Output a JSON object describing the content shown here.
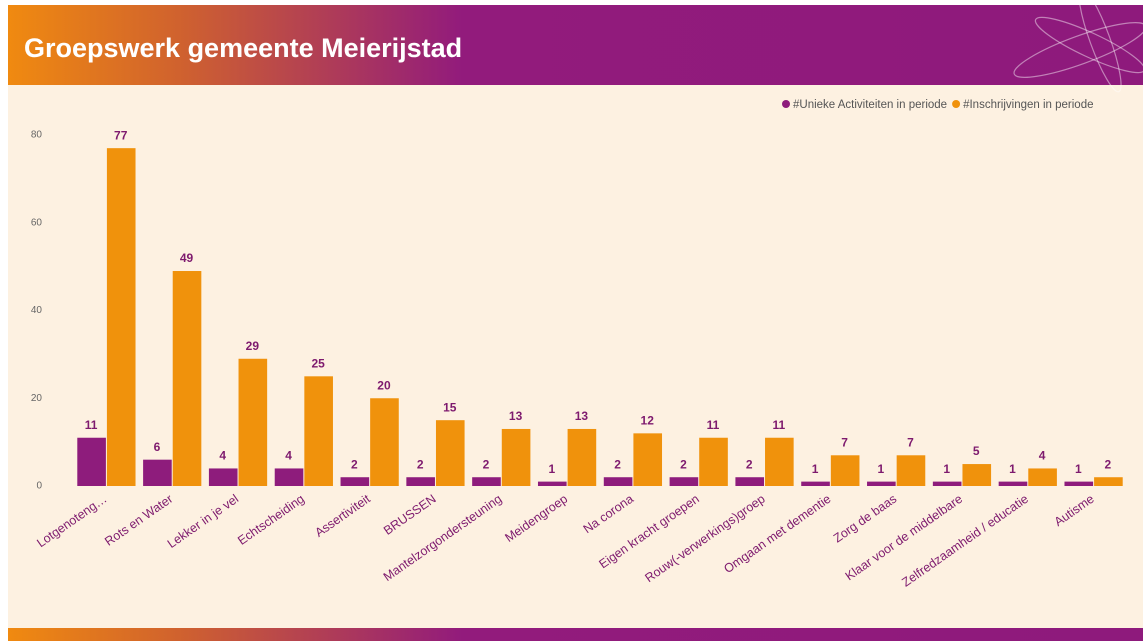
{
  "header": {
    "title": "Groepswerk gemeente Meierijstad"
  },
  "chart_data": {
    "type": "bar",
    "categories": [
      "Lotgenoteng…",
      "Rots en Water",
      "Lekker in je vel",
      "Echtscheiding",
      "Assertiviteit",
      "BRUSSEN",
      "Mantelzorgondersteuning",
      "Meidengroep",
      "Na corona",
      "Eigen kracht groepen",
      "Rouw(-verwerkings)groep",
      "Omgaan met dementie",
      "Zorg de baas",
      "Klaar voor de middelbare",
      "Zelfredzaamheid / educatie",
      "Autisme"
    ],
    "series": [
      {
        "name": "#Unieke Activiteiten in periode",
        "color": "#8e1c7c",
        "values": [
          11,
          6,
          4,
          4,
          2,
          2,
          2,
          1,
          2,
          2,
          2,
          1,
          1,
          1,
          1,
          1
        ]
      },
      {
        "name": "#Inschrijvingen in periode",
        "color": "#f0920c",
        "values": [
          77,
          49,
          29,
          25,
          20,
          15,
          13,
          13,
          12,
          11,
          11,
          7,
          7,
          5,
          4,
          2
        ]
      }
    ],
    "ylim": [
      0,
      80
    ],
    "yticks": [
      0,
      20,
      40,
      60,
      80
    ],
    "grid": false,
    "legend": "top-right"
  }
}
